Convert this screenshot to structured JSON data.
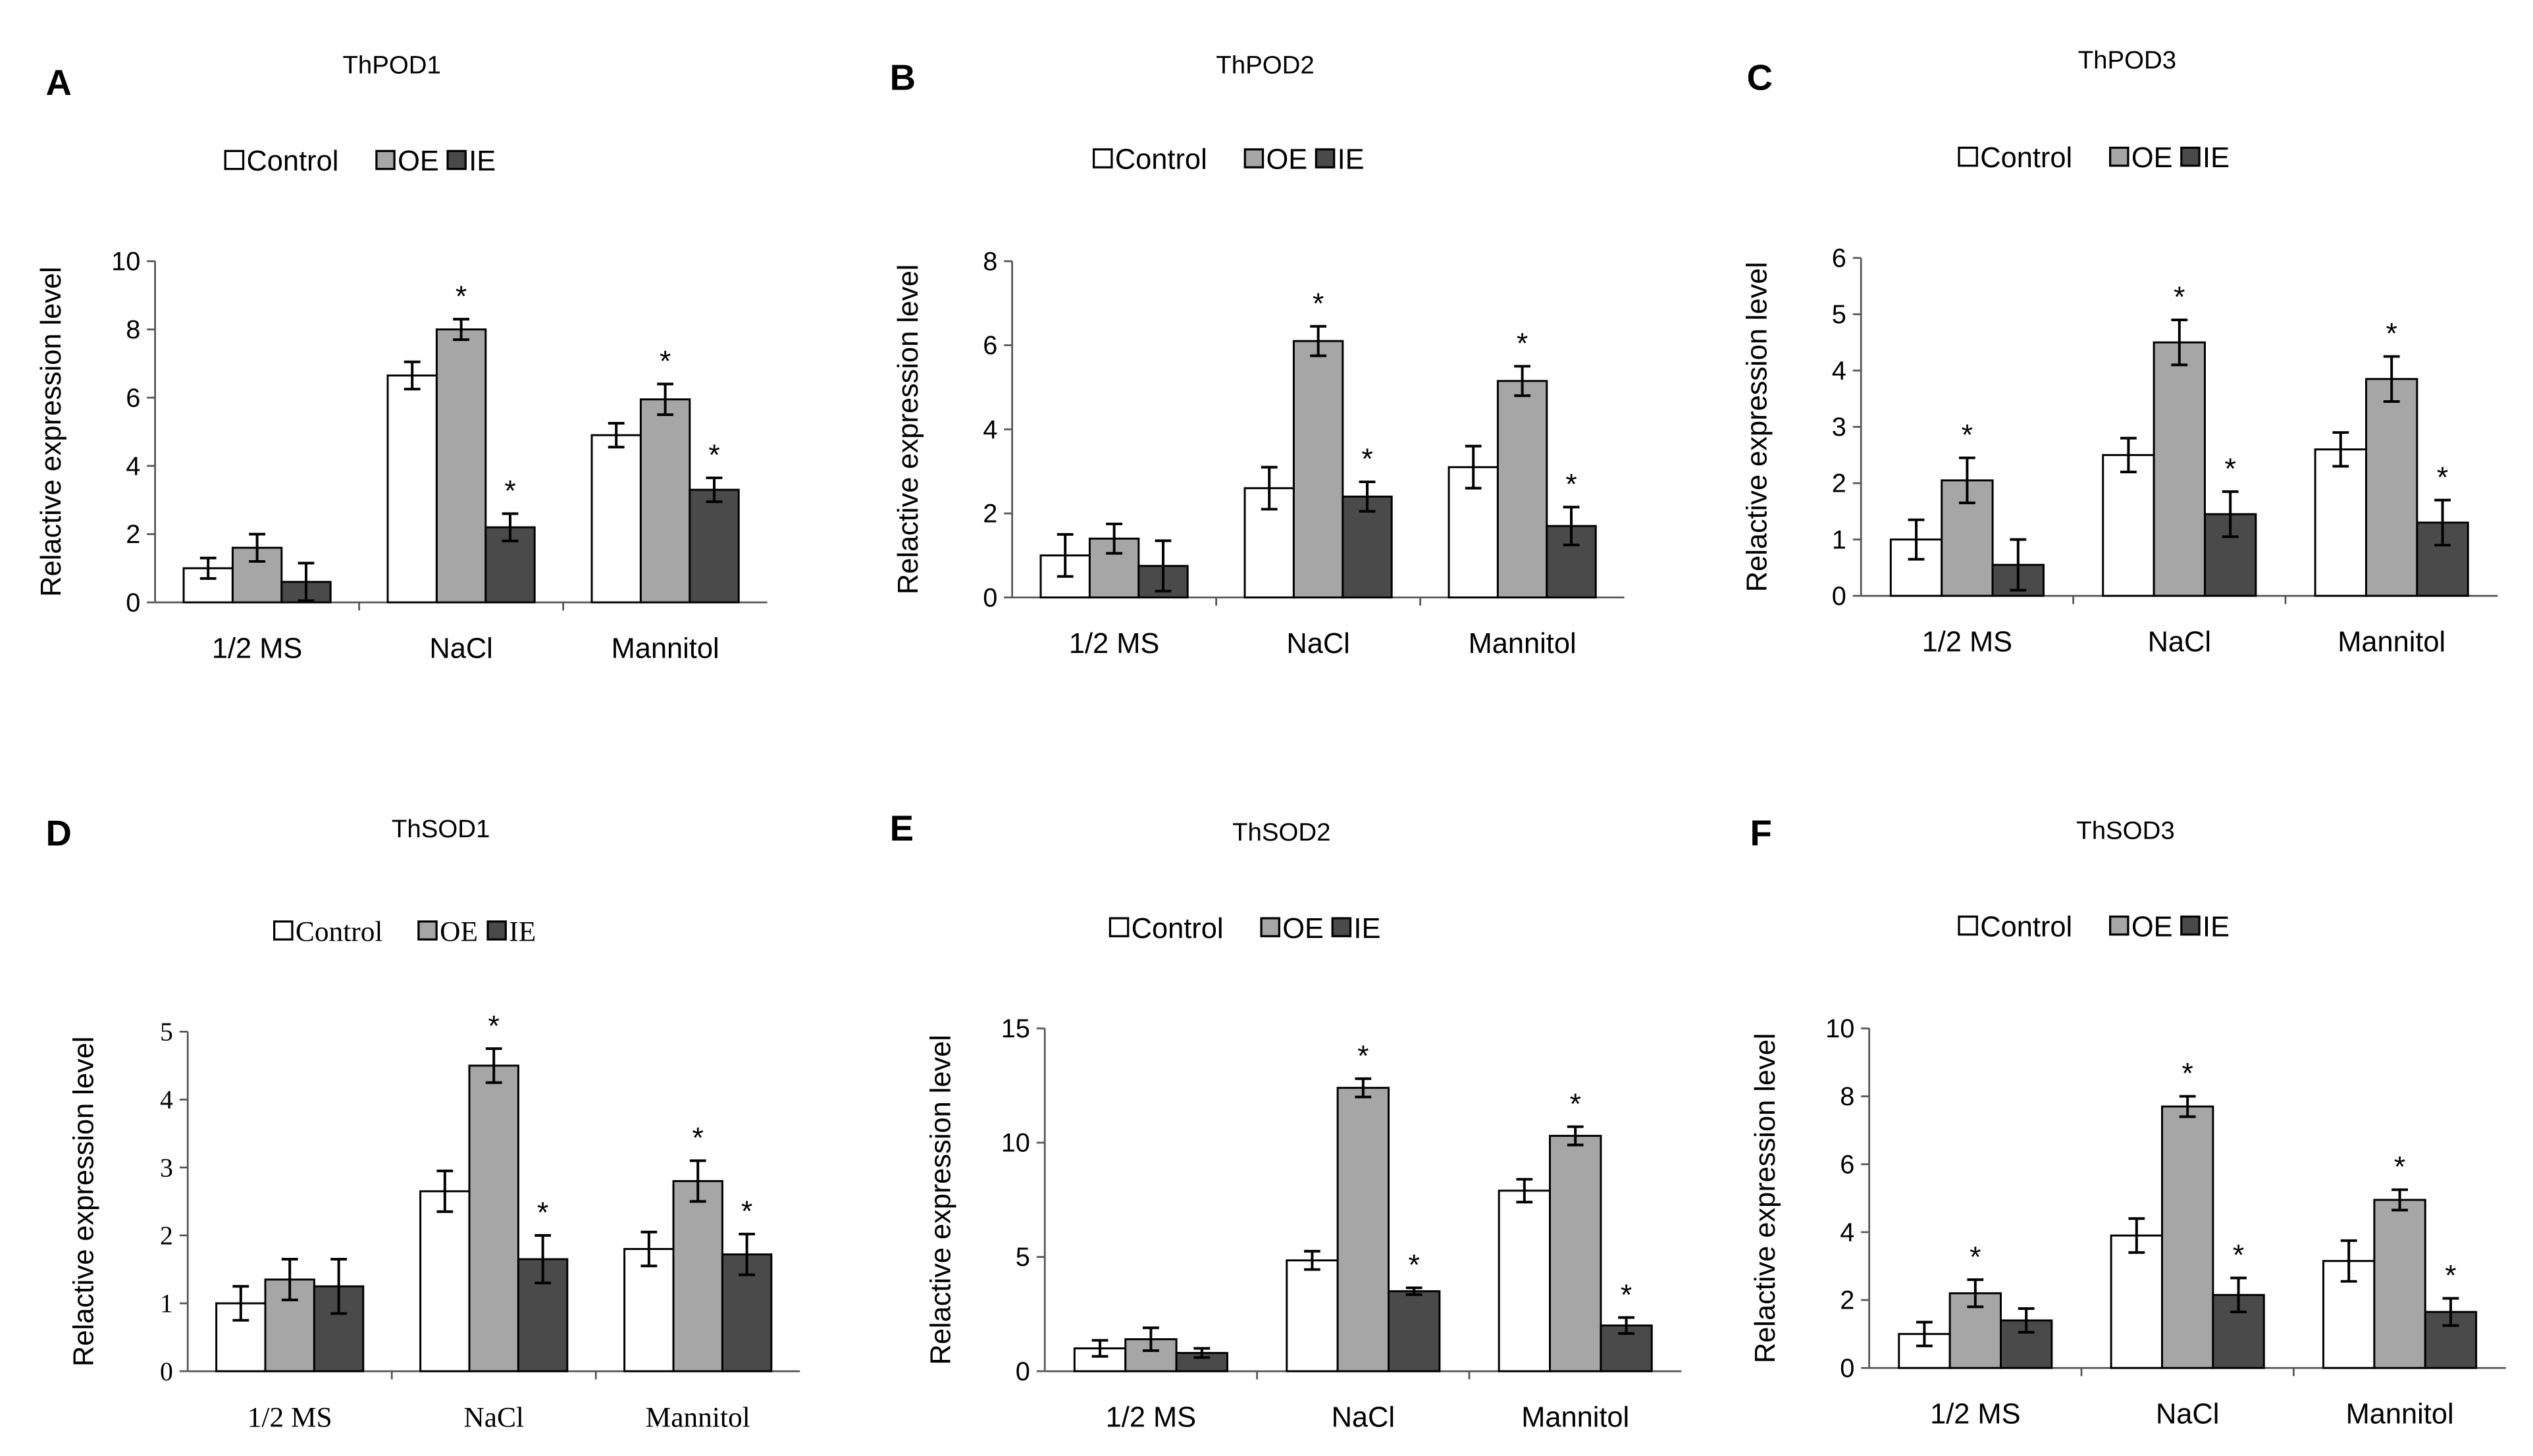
{
  "chart_data": [
    {
      "panel_label": "A",
      "title": "ThPOD1",
      "type": "bar",
      "ylabel": "Relactive  expression  level",
      "xlabel": "",
      "ylim": [
        0,
        10
      ],
      "yticks": [
        "0",
        "2",
        "4",
        "6",
        "8",
        "10"
      ],
      "categories": [
        "1/2 MS",
        "NaCl",
        "Mannitol"
      ],
      "legend": [
        "Control",
        "OE",
        "IE"
      ],
      "series": [
        {
          "name": "Control",
          "values": [
            1.0,
            6.65,
            4.9
          ],
          "errors": [
            0.3,
            0.4,
            0.35
          ],
          "stars": [
            false,
            false,
            false
          ]
        },
        {
          "name": "OE",
          "values": [
            1.6,
            8.0,
            5.95
          ],
          "errors": [
            0.4,
            0.3,
            0.45
          ],
          "stars": [
            false,
            true,
            true
          ]
        },
        {
          "name": "IE",
          "values": [
            0.6,
            2.2,
            3.3
          ],
          "errors": [
            0.55,
            0.4,
            0.35
          ],
          "stars": [
            false,
            true,
            true
          ]
        }
      ]
    },
    {
      "panel_label": "B",
      "title": "ThPOD2",
      "type": "bar",
      "ylabel": "Relactive  expression  level",
      "xlabel": "",
      "ylim": [
        0,
        8
      ],
      "yticks": [
        "0",
        "2",
        "4",
        "6",
        "8"
      ],
      "categories": [
        "1/2 MS",
        "NaCl",
        "Mannitol"
      ],
      "legend": [
        "Control",
        "OE",
        "IE"
      ],
      "series": [
        {
          "name": "Control",
          "values": [
            1.0,
            2.6,
            3.1
          ],
          "errors": [
            0.5,
            0.5,
            0.5
          ],
          "stars": [
            false,
            false,
            false
          ]
        },
        {
          "name": "OE",
          "values": [
            1.4,
            6.1,
            5.15
          ],
          "errors": [
            0.35,
            0.35,
            0.35
          ],
          "stars": [
            false,
            true,
            true
          ]
        },
        {
          "name": "IE",
          "values": [
            0.75,
            2.4,
            1.7
          ],
          "errors": [
            0.6,
            0.35,
            0.45
          ],
          "stars": [
            false,
            true,
            true
          ]
        }
      ]
    },
    {
      "panel_label": "C",
      "title": "ThPOD3",
      "type": "bar",
      "ylabel": "Relactive  expression  level",
      "xlabel": "",
      "ylim": [
        0,
        6
      ],
      "yticks": [
        "0",
        "1",
        "2",
        "3",
        "4",
        "5",
        "6"
      ],
      "categories": [
        "1/2 MS",
        "NaCl",
        "Mannitol"
      ],
      "legend": [
        "Control",
        "OE",
        "IE"
      ],
      "series": [
        {
          "name": "Control",
          "values": [
            1.0,
            2.5,
            2.6
          ],
          "errors": [
            0.35,
            0.3,
            0.3
          ],
          "stars": [
            false,
            false,
            false
          ]
        },
        {
          "name": "OE",
          "values": [
            2.05,
            4.5,
            3.85
          ],
          "errors": [
            0.4,
            0.4,
            0.4
          ],
          "stars": [
            true,
            true,
            true
          ]
        },
        {
          "name": "IE",
          "values": [
            0.55,
            1.45,
            1.3
          ],
          "errors": [
            0.45,
            0.4,
            0.4
          ],
          "stars": [
            false,
            true,
            true
          ]
        }
      ]
    },
    {
      "panel_label": "D",
      "title": "ThSOD1",
      "type": "bar",
      "ylabel": "Relactive  expression  level",
      "xlabel": "",
      "ylim": [
        0,
        5
      ],
      "yticks": [
        "0",
        "1",
        "2",
        "3",
        "4",
        "5"
      ],
      "categories": [
        "1/2 MS",
        "NaCl",
        "Mannitol"
      ],
      "legend": [
        "Control",
        "OE",
        "IE"
      ],
      "series": [
        {
          "name": "Control",
          "values": [
            1.0,
            2.65,
            1.8
          ],
          "errors": [
            0.25,
            0.3,
            0.25
          ],
          "stars": [
            false,
            false,
            false
          ]
        },
        {
          "name": "OE",
          "values": [
            1.35,
            4.5,
            2.8
          ],
          "errors": [
            0.3,
            0.25,
            0.3
          ],
          "stars": [
            false,
            true,
            true
          ]
        },
        {
          "name": "IE",
          "values": [
            1.25,
            1.65,
            1.72
          ],
          "errors": [
            0.4,
            0.35,
            0.3
          ],
          "stars": [
            false,
            true,
            true
          ]
        }
      ]
    },
    {
      "panel_label": "E",
      "title": "ThSOD2",
      "type": "bar",
      "ylabel": "Relactive  expression  level",
      "xlabel": "",
      "ylim": [
        0,
        15
      ],
      "yticks": [
        "0",
        "5",
        "10",
        "15"
      ],
      "categories": [
        "1/2 MS",
        "NaCl",
        "Mannitol"
      ],
      "legend": [
        "Control",
        "OE",
        "IE"
      ],
      "series": [
        {
          "name": "Control",
          "values": [
            1.0,
            4.85,
            7.9
          ],
          "errors": [
            0.35,
            0.4,
            0.5
          ],
          "stars": [
            false,
            false,
            false
          ]
        },
        {
          "name": "OE",
          "values": [
            1.4,
            12.4,
            10.3
          ],
          "errors": [
            0.5,
            0.4,
            0.4
          ],
          "stars": [
            false,
            true,
            true
          ]
        },
        {
          "name": "IE",
          "values": [
            0.8,
            3.5,
            2.0
          ],
          "errors": [
            0.2,
            0.15,
            0.35
          ],
          "stars": [
            false,
            true,
            true
          ]
        }
      ]
    },
    {
      "panel_label": "F",
      "title": "ThSOD3",
      "type": "bar",
      "ylabel": "Relactive  expression  level",
      "xlabel": "",
      "ylim": [
        0,
        10
      ],
      "yticks": [
        "0",
        "2",
        "4",
        "6",
        "8",
        "10"
      ],
      "categories": [
        "1/2 MS",
        "NaCl",
        "Mannitol"
      ],
      "legend": [
        "Control",
        "OE",
        "IE"
      ],
      "series": [
        {
          "name": "Control",
          "values": [
            1.0,
            3.9,
            3.15
          ],
          "errors": [
            0.35,
            0.5,
            0.6
          ],
          "stars": [
            false,
            false,
            false
          ]
        },
        {
          "name": "OE",
          "values": [
            2.2,
            7.7,
            4.95
          ],
          "errors": [
            0.4,
            0.3,
            0.3
          ],
          "stars": [
            true,
            true,
            true
          ]
        },
        {
          "name": "IE",
          "values": [
            1.4,
            2.15,
            1.65
          ],
          "errors": [
            0.35,
            0.5,
            0.4
          ],
          "stars": [
            false,
            true,
            true
          ]
        }
      ]
    }
  ],
  "colors": {
    "Control": "#ffffff",
    "OE": "#a6a6a6",
    "IE": "#4a4a4a",
    "stroke": "#000000",
    "text": "#000000"
  },
  "star_symbol": "*"
}
